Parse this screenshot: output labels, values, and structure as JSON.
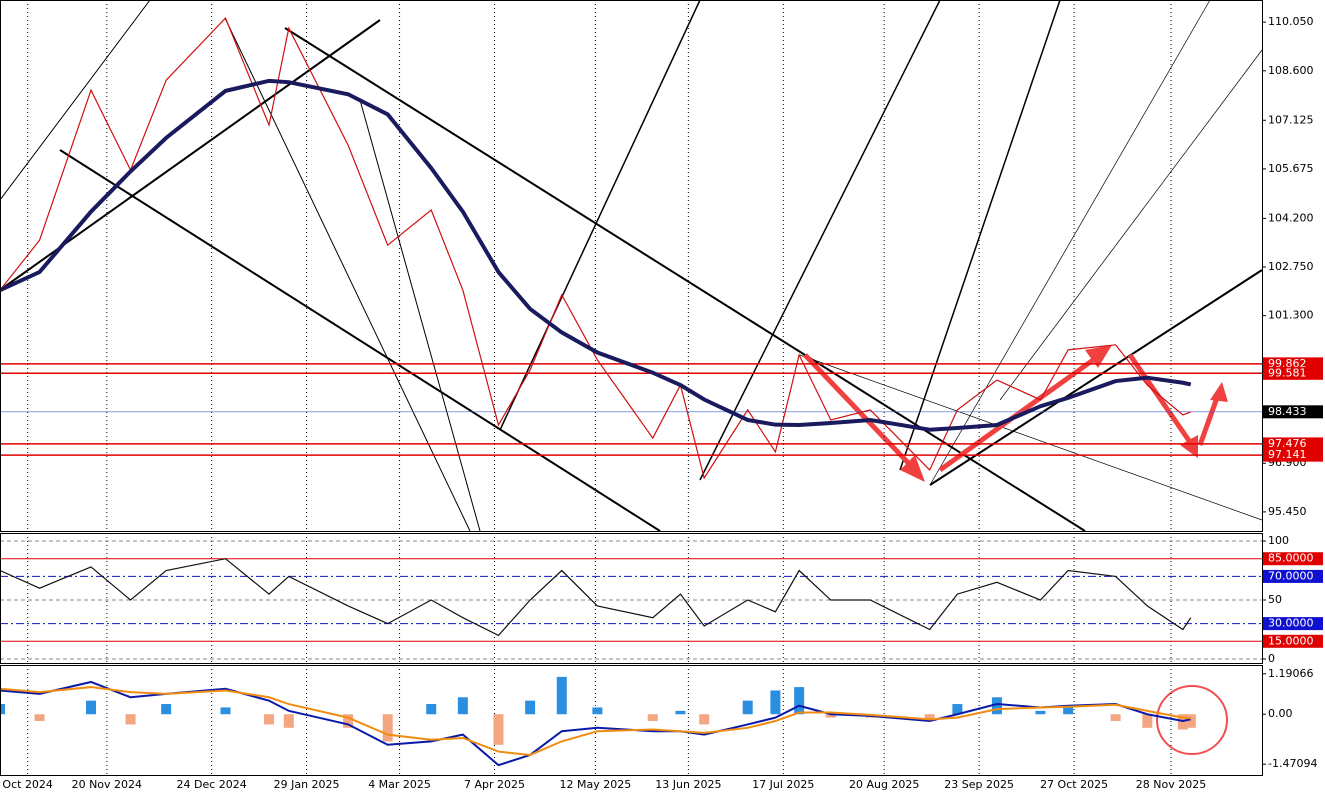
{
  "chart_data": [
    {
      "type": "line",
      "x": [
        -7,
        3,
        16,
        26,
        35,
        50,
        61,
        66,
        81,
        91,
        102,
        110,
        119,
        127,
        135,
        144,
        158,
        165,
        171,
        182,
        189,
        195,
        203,
        213,
        228,
        235,
        245,
        256,
        263,
        275,
        283,
        292,
        294
      ],
      "xlim": [
        -7,
        312
      ],
      "ylim": [
        94.88,
        110.71
      ],
      "yticks": [
        {
          "value": 110.05,
          "label": "110.050"
        },
        {
          "value": 108.6,
          "label": "108.600"
        },
        {
          "value": 107.125,
          "label": "107.125"
        },
        {
          "value": 105.675,
          "label": "105.675"
        },
        {
          "value": 104.2,
          "label": "104.200"
        },
        {
          "value": 102.75,
          "label": "102.750"
        },
        {
          "value": 101.3,
          "label": "101.300"
        },
        {
          "value": 96.9,
          "label": "96.900"
        },
        {
          "value": 95.45,
          "label": "95.450"
        }
      ],
      "series": [
        {
          "color": "#d01010",
          "values": [
            102.06,
            103.55,
            108.02,
            105.64,
            108.32,
            110.17,
            106.98,
            109.87,
            106.38,
            103.4,
            104.45,
            102.06,
            98.04,
            99.68,
            101.92,
            99.98,
            97.65,
            99.23,
            96.46,
            98.49,
            97.24,
            100.13,
            98.19,
            98.49,
            96.7,
            98.49,
            99.38,
            98.79,
            100.28,
            100.43,
            99.23,
            98.34,
            98.43
          ]
        },
        {
          "color": "#1a1a5e",
          "values": [
            102.06,
            102.6,
            104.4,
            105.6,
            106.6,
            108.0,
            108.3,
            108.26,
            107.9,
            107.3,
            105.7,
            104.4,
            102.6,
            101.5,
            100.8,
            100.2,
            99.6,
            99.23,
            98.8,
            98.19,
            98.05,
            98.04,
            98.1,
            98.19,
            97.9,
            97.95,
            98.04,
            98.6,
            98.85,
            99.35,
            99.45,
            99.3,
            99.25
          ]
        }
      ],
      "levels": [
        {
          "value": 99.862,
          "label": "99.862",
          "color": "#e00000"
        },
        {
          "value": 99.581,
          "label": "99.581",
          "color": "#e00000"
        },
        {
          "value": 98.433,
          "label": "98.433",
          "color": "#000000"
        },
        {
          "value": 97.476,
          "label": "97.476",
          "color": "#e00000"
        },
        {
          "value": 97.141,
          "label": "97.141",
          "color": "#e00000"
        }
      ]
    },
    {
      "type": "line",
      "x": [
        -7,
        3,
        16,
        26,
        35,
        50,
        61,
        66,
        81,
        91,
        102,
        110,
        119,
        127,
        135,
        144,
        158,
        165,
        171,
        182,
        189,
        195,
        203,
        213,
        228,
        235,
        245,
        256,
        263,
        275,
        283,
        292,
        294
      ],
      "xlim": [
        -7,
        312
      ],
      "ylim": [
        -3.4,
        106.8
      ],
      "yticks": [
        0,
        50,
        100
      ],
      "series": [
        {
          "color": "#111111",
          "values": [
            75,
            60,
            78,
            50,
            75,
            85,
            55,
            70,
            45,
            30,
            50,
            35,
            20,
            50,
            75,
            45,
            35,
            55,
            28,
            50,
            40,
            75,
            50,
            50,
            25,
            55,
            65,
            50,
            75,
            70,
            45,
            25,
            35
          ]
        }
      ],
      "levels": [
        {
          "value": 85,
          "label": "85.0000",
          "color": "#e00000"
        },
        {
          "value": 70,
          "label": "70.0000",
          "color": "#1010d0"
        },
        {
          "value": 30,
          "label": "30.0000",
          "color": "#1010d0"
        },
        {
          "value": 15,
          "label": "15.0000",
          "color": "#e00000"
        }
      ]
    },
    {
      "type": "bar",
      "x": [
        -7,
        3,
        16,
        26,
        35,
        50,
        61,
        66,
        81,
        91,
        102,
        110,
        119,
        127,
        135,
        144,
        158,
        165,
        171,
        182,
        189,
        195,
        203,
        213,
        228,
        235,
        245,
        256,
        263,
        275,
        283,
        292,
        294
      ],
      "xlim": [
        -7,
        312
      ],
      "xticks": [
        {
          "value": 0,
          "label": "Oct 2024"
        },
        {
          "value": 20,
          "label": "20 Nov 2024"
        },
        {
          "value": 46.5,
          "label": "24 Dec 2024"
        },
        {
          "value": 70.5,
          "label": "29 Jan 2025"
        },
        {
          "value": 94,
          "label": "4 Mar 2025"
        },
        {
          "value": 118,
          "label": "7 Apr 2025"
        },
        {
          "value": 143.5,
          "label": "12 May 2025"
        },
        {
          "value": 167,
          "label": "13 Jun 2025"
        },
        {
          "value": 191,
          "label": "17 Jul 2025"
        },
        {
          "value": 216.5,
          "label": "20 Aug 2025"
        },
        {
          "value": 240.5,
          "label": "23 Sep 2025"
        },
        {
          "value": 264.5,
          "label": "27 Oct 2025"
        },
        {
          "value": 289,
          "label": "28 Nov 2025"
        }
      ],
      "ylim": [
        -1.79,
        1.45
      ],
      "yticks": [
        {
          "value": 1.19066,
          "label": "1.19066"
        },
        {
          "value": 0,
          "label": "0.00"
        },
        {
          "value": -1.47094,
          "label": "-1.47094"
        }
      ],
      "bars": {
        "positive_color": "#2a8fe0",
        "negative_color": "#f4a582",
        "values": [
          0.3,
          -0.2,
          0.4,
          -0.3,
          0.3,
          0.2,
          -0.3,
          -0.4,
          -0.4,
          -0.8,
          0.3,
          0.5,
          -0.9,
          0.4,
          1.1,
          0.2,
          -0.2,
          0.1,
          -0.3,
          0.4,
          0.7,
          0.8,
          -0.1,
          -0.1,
          -0.2,
          0.3,
          0.5,
          0.1,
          0.2,
          -0.2,
          -0.4,
          -0.45,
          -0.4
        ]
      },
      "series": [
        {
          "color": "#0a1aa8",
          "values": [
            0.7,
            0.6,
            0.95,
            0.5,
            0.6,
            0.75,
            0.4,
            0.1,
            -0.3,
            -0.9,
            -0.8,
            -0.6,
            -1.5,
            -1.2,
            -0.5,
            -0.4,
            -0.5,
            -0.5,
            -0.6,
            -0.3,
            -0.1,
            0.25,
            0,
            -0.05,
            -0.2,
            0,
            0.3,
            0.2,
            0.25,
            0.3,
            0,
            -0.2,
            -0.15
          ]
        },
        {
          "color": "#f08c10",
          "values": [
            0.75,
            0.65,
            0.8,
            0.65,
            0.6,
            0.7,
            0.5,
            0.3,
            -0.1,
            -0.6,
            -0.75,
            -0.7,
            -1.1,
            -1.2,
            -0.8,
            -0.5,
            -0.45,
            -0.5,
            -0.55,
            -0.4,
            -0.2,
            0.05,
            0.05,
            -0.02,
            -0.15,
            -0.1,
            0.15,
            0.2,
            0.22,
            0.28,
            0.1,
            -0.1,
            -0.12
          ]
        }
      ]
    }
  ]
}
